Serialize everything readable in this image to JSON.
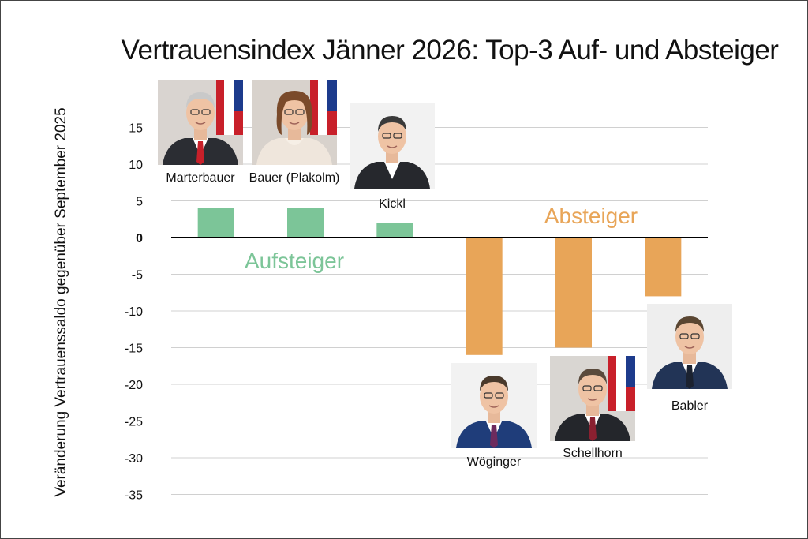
{
  "chart_data": {
    "type": "bar",
    "title": "Vertrauensindex Jänner 2026: Top-3 Auf- und Absteiger",
    "xlabel": "",
    "ylabel": "Veränderung Vertrauenssaldo gegenüber September 2025",
    "ylim": [
      -35,
      20
    ],
    "yticks": [
      "15",
      "10",
      "5",
      "0",
      "-5",
      "-10",
      "-15",
      "-20",
      "-25",
      "-30",
      "-35"
    ],
    "categories": [
      "Marterbauer",
      "Bauer (Plakolm)",
      "Kickl",
      "Wöginger",
      "Schellhorn",
      "Babler"
    ],
    "values": [
      4,
      4,
      2,
      -16,
      -15,
      -8
    ],
    "grid": true,
    "annotations": {
      "risers": "Aufsteiger",
      "fallers": "Absteiger"
    },
    "colors": {
      "risers": "#7cc598",
      "fallers": "#e8a558",
      "grid": "#d0d0d0",
      "axis": "#000000"
    }
  }
}
